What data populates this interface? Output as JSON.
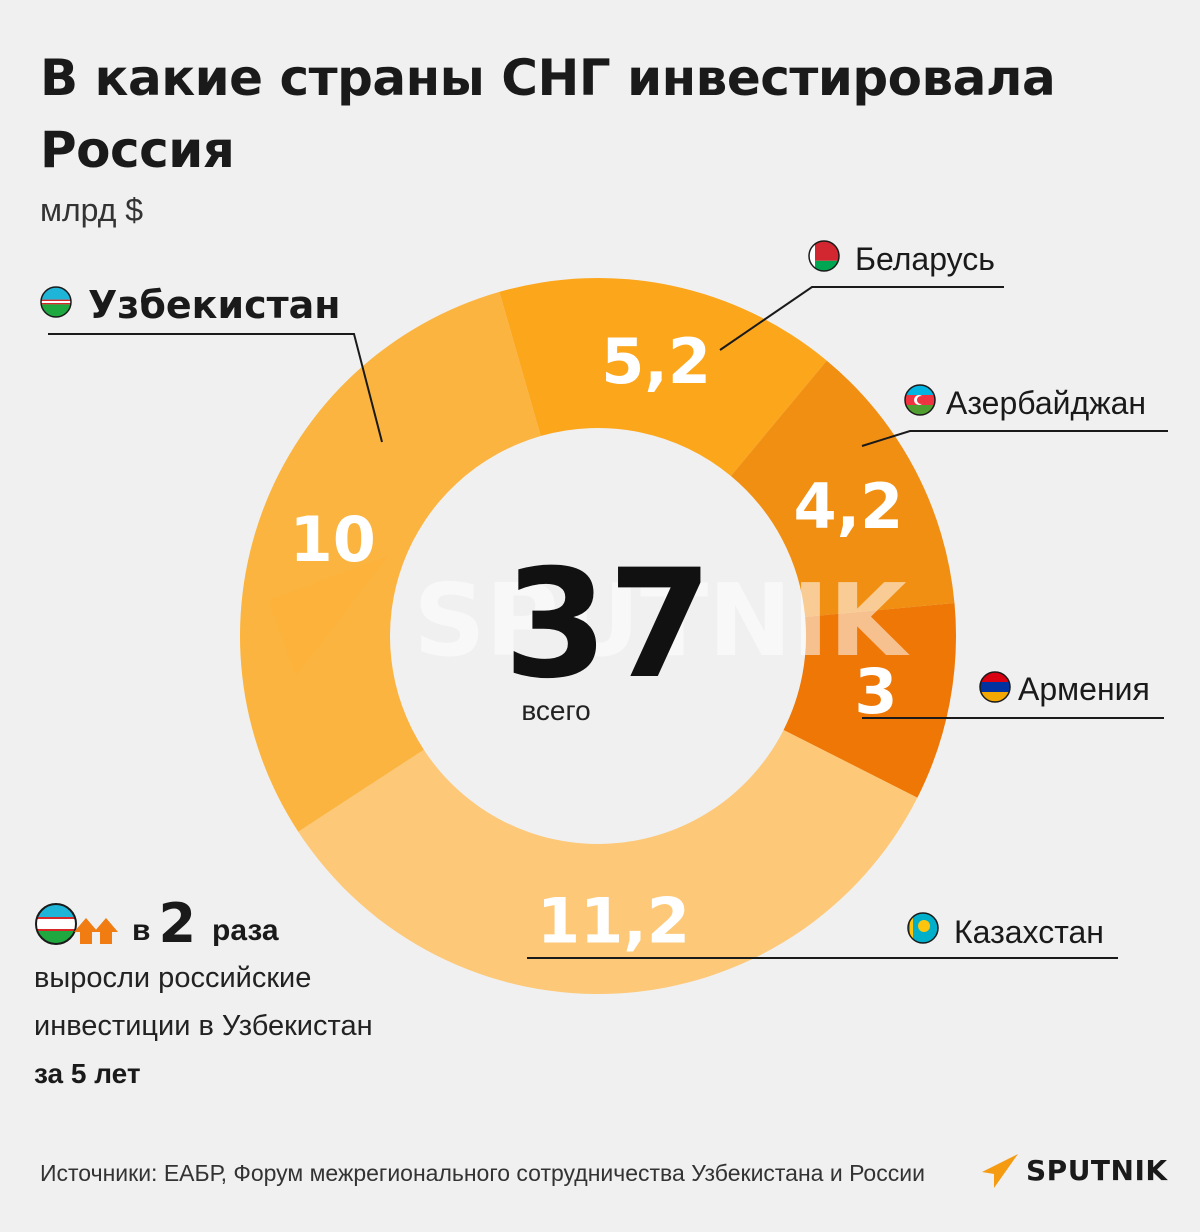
{
  "title": "В какие страны СНГ инвестировала Россия",
  "subtitle": "млрд $",
  "center": {
    "value": "37",
    "label": "всего"
  },
  "watermark": "SPUTNIK",
  "chart_data": {
    "type": "pie",
    "variant": "donut",
    "unit": "млрд $",
    "total": 37,
    "slices": [
      {
        "name": "Беларусь",
        "value": 5.2,
        "label": "5,2",
        "color": "#fca61c",
        "bold": false
      },
      {
        "name": "Азербайджан",
        "value": 4.2,
        "label": "4,2",
        "color": "#f18f12",
        "bold": false
      },
      {
        "name": "Армения",
        "value": 3,
        "label": "3",
        "color": "#ee7706",
        "bold": false
      },
      {
        "name": "Казахстан",
        "value": 11.2,
        "label": "11,2",
        "color": "#fdc877",
        "bold": false
      },
      {
        "name": "Узбекистан",
        "value": 10,
        "label": "10",
        "color": "#fbb43f",
        "bold": true
      }
    ]
  },
  "callout": {
    "prefix": "в",
    "value": "2",
    "suffix": "раза",
    "line1": "выросли российские",
    "line2": "инвестиции в Узбекистан",
    "line3": "за 5 лет",
    "arrow_color": "#f07c12"
  },
  "footer": {
    "source": "Источники: ЕАБР, Форум межрегионального сотрудничества Узбекистана и России",
    "brand": "SPUTNIK",
    "brand_color": "#f49b12"
  }
}
